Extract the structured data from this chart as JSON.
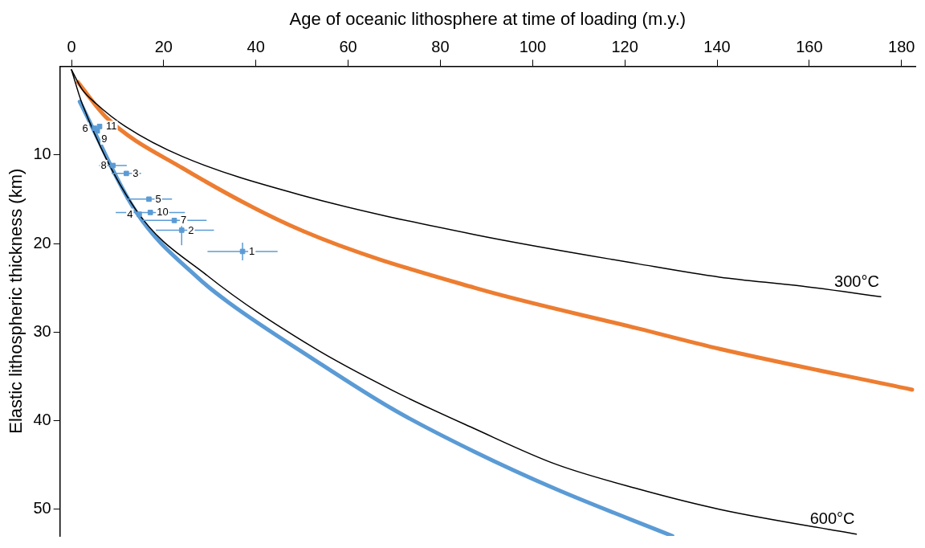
{
  "chart_data": {
    "type": "line",
    "xlabel": "Age of oceanic lithosphere at time of loading (m.y.)",
    "ylabel": "Elastic lithospheric thickness (km)",
    "xlim": [
      -2.5,
      183
    ],
    "xticks": [
      0,
      20,
      40,
      60,
      80,
      100,
      120,
      140,
      160,
      180
    ],
    "ylim": [
      53,
      0
    ],
    "yticks": [
      10,
      20,
      30,
      40,
      50
    ],
    "grid": false,
    "legend": false,
    "line_style": "solid",
    "series": [
      {
        "name": "300°C",
        "color": "#000000",
        "type": "line",
        "x": [
          0,
          2.3,
          5.3,
          11.7,
          24.1,
          50.2,
          87.4,
          122.9,
          140.6,
          158.3,
          175.5
        ],
        "values": [
          0.4,
          2.6,
          4.2,
          6.8,
          10.2,
          14.6,
          19.0,
          22.3,
          23.8,
          24.8,
          26.0
        ]
      },
      {
        "name": "600°C",
        "color": "#000000",
        "x": [
          0,
          2.3,
          14.1,
          29.4,
          52,
          69.7,
          87.4,
          105,
          122.9,
          140.6,
          170.2
        ],
        "values": [
          0.4,
          4.2,
          16.3,
          23.6,
          31.6,
          36.6,
          40.9,
          44.9,
          47.7,
          50.0,
          52.8
        ]
      },
      {
        "color": "#ed7d31",
        "x": [
          1.4,
          7.6,
          24.1,
          50.2,
          87.4,
          122.9,
          140.6,
          182.3
        ],
        "values": [
          1.8,
          5.8,
          11.5,
          18.6,
          25.0,
          29.6,
          31.9,
          36.5
        ]
      },
      {
        "color": "#5b9bd5",
        "x": [
          1.8,
          14.1,
          27.7,
          34.2,
          52,
          69.7,
          87.4,
          105,
          130.3
        ],
        "values": [
          4.0,
          16.5,
          24.0,
          26.7,
          32.9,
          38.7,
          43.5,
          47.7,
          53
        ]
      },
      {
        "type": "scatter",
        "marker": "square",
        "color": "#5b9bd5",
        "x": [
          37.1,
          23.9,
          11.9,
          14.7,
          16.8,
          5.0,
          22.3,
          9.0,
          5.6,
          17.1,
          6.1
        ],
        "values": [
          20.9,
          18.5,
          12.1,
          16.7,
          15.0,
          7.0,
          17.4,
          11.2,
          7.3,
          16.5,
          6.8
        ],
        "errors": [
          1,
          1.7,
          null,
          null,
          null,
          null,
          null,
          null,
          null,
          null,
          null
        ],
        "xerrors": [
          7.6,
          [
            18.3,
            30.9
          ],
          3.2,
          null,
          5,
          null,
          7,
          3,
          null,
          7.5,
          null
        ]
      }
    ],
    "annotations": [
      {
        "text": "1",
        "x": 37.1,
        "y": 20.9
      },
      {
        "text": "2",
        "x": 23.9,
        "y": 18.5
      },
      {
        "text": "3",
        "x": 11.9,
        "y": 12.1
      },
      {
        "text": "4",
        "x": 14.7,
        "y": 16.7
      },
      {
        "text": "5",
        "x": 16.8,
        "y": 15.0
      },
      {
        "text": "6",
        "x": 5.0,
        "y": 7.0
      },
      {
        "text": "7",
        "x": 22.3,
        "y": 17.4
      },
      {
        "text": "8",
        "x": 9.0,
        "y": 11.2
      },
      {
        "text": "9",
        "x": 5.6,
        "y": 7.3
      },
      {
        "text": "10",
        "x": 17.1,
        "y": 16.5
      },
      {
        "text": "11",
        "x": 6.1,
        "y": 6.8
      }
    ]
  }
}
